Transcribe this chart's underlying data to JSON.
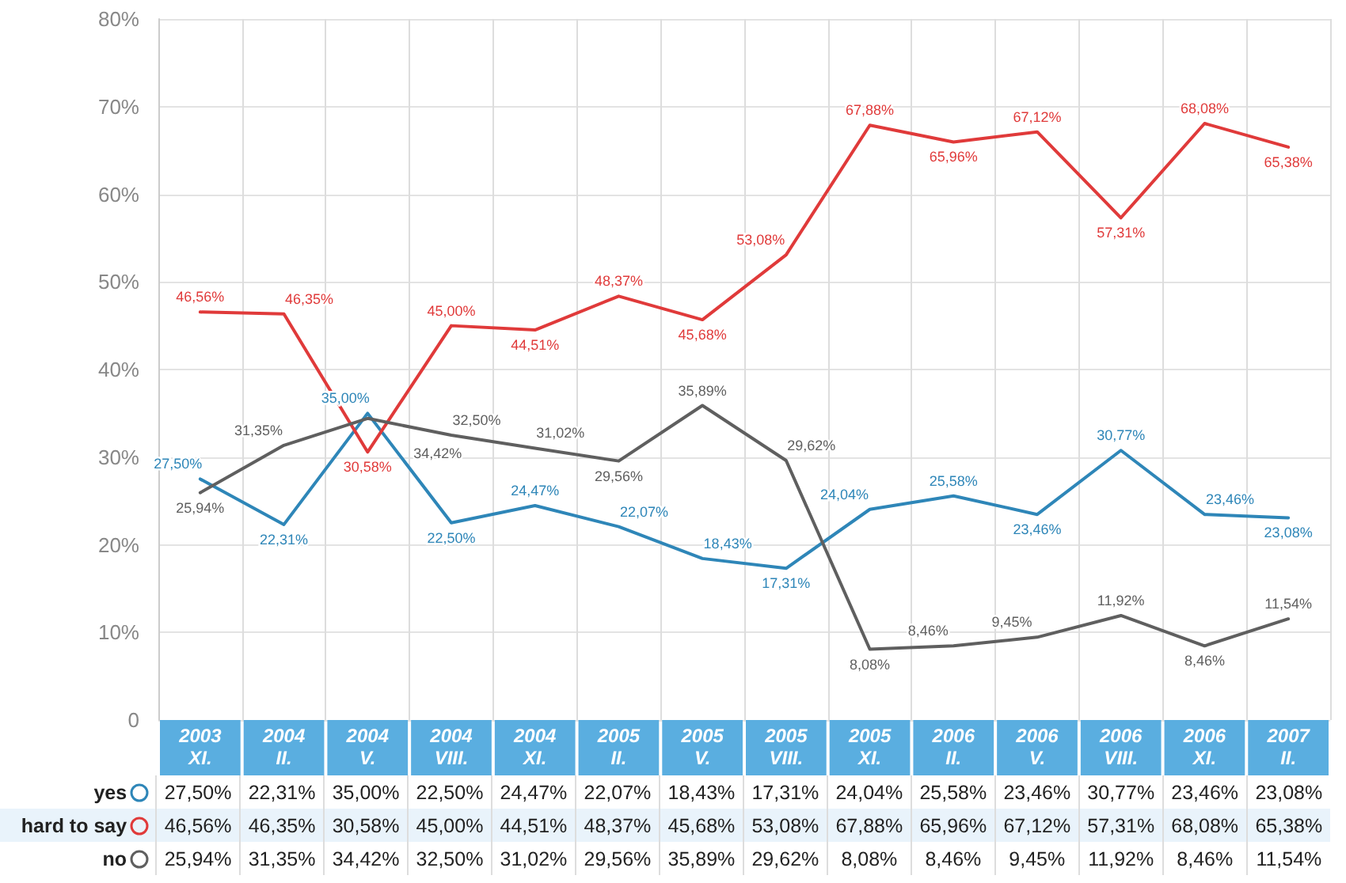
{
  "chart_data": {
    "type": "line",
    "categories": [
      "2003\nXI.",
      "2004\nII.",
      "2004\nV.",
      "2004\nVIII.",
      "2004\nXI.",
      "2005\nII.",
      "2005\nV.",
      "2005\nVIII.",
      "2005\nXI.",
      "2006\nII.",
      "2006\nV.",
      "2006\nVIII.",
      "2006\nXI.",
      "2007\nII."
    ],
    "series": [
      {
        "name": "yes",
        "color": "#2e86b8",
        "values": [
          27.5,
          22.31,
          35.0,
          22.5,
          24.47,
          22.07,
          18.43,
          17.31,
          24.04,
          25.58,
          23.46,
          30.77,
          23.46,
          23.08
        ],
        "value_labels": [
          "27,50%",
          "22,31%",
          "35,00%",
          "22,50%",
          "24,47%",
          "22,07%",
          "18,43%",
          "17,31%",
          "24,04%",
          "25,58%",
          "23,46%",
          "30,77%",
          "23,46%",
          "23,08%"
        ]
      },
      {
        "name": "hard to say",
        "color": "#e03a3a",
        "values": [
          46.56,
          46.35,
          30.58,
          45.0,
          44.51,
          48.37,
          45.68,
          53.08,
          67.88,
          65.96,
          67.12,
          57.31,
          68.08,
          65.38
        ],
        "value_labels": [
          "46,56%",
          "46,35%",
          "30,58%",
          "45,00%",
          "44,51%",
          "48,37%",
          "45,68%",
          "53,08%",
          "67,88%",
          "65,96%",
          "67,12%",
          "57,31%",
          "68,08%",
          "65,38%"
        ]
      },
      {
        "name": "no",
        "color": "#5f5f5f",
        "values": [
          25.94,
          31.35,
          34.42,
          32.5,
          31.02,
          29.56,
          35.89,
          29.62,
          8.08,
          8.46,
          9.45,
          11.92,
          8.46,
          11.54
        ],
        "value_labels": [
          "25,94%",
          "31,35%",
          "34,42%",
          "32,50%",
          "31,02%",
          "29,56%",
          "35,89%",
          "29,62%",
          "8,08%",
          "8,46%",
          "9,45%",
          "11,92%",
          "8,46%",
          "11,54%"
        ]
      }
    ],
    "ylim": [
      0,
      80
    ],
    "yticks": [
      0,
      {
        "value": 10,
        "label": "10%"
      },
      {
        "value": 20,
        "label": "20%"
      },
      {
        "value": 30,
        "label": "30%"
      },
      {
        "value": 40,
        "label": "40%"
      },
      {
        "value": 50,
        "label": "50%"
      },
      {
        "value": 60,
        "label": "60%"
      },
      {
        "value": 70,
        "label": "70%"
      },
      {
        "value": 80,
        "label": "80%"
      }
    ],
    "grid": true,
    "legend": "bottom",
    "marker": "none",
    "line_style": "solid"
  }
}
